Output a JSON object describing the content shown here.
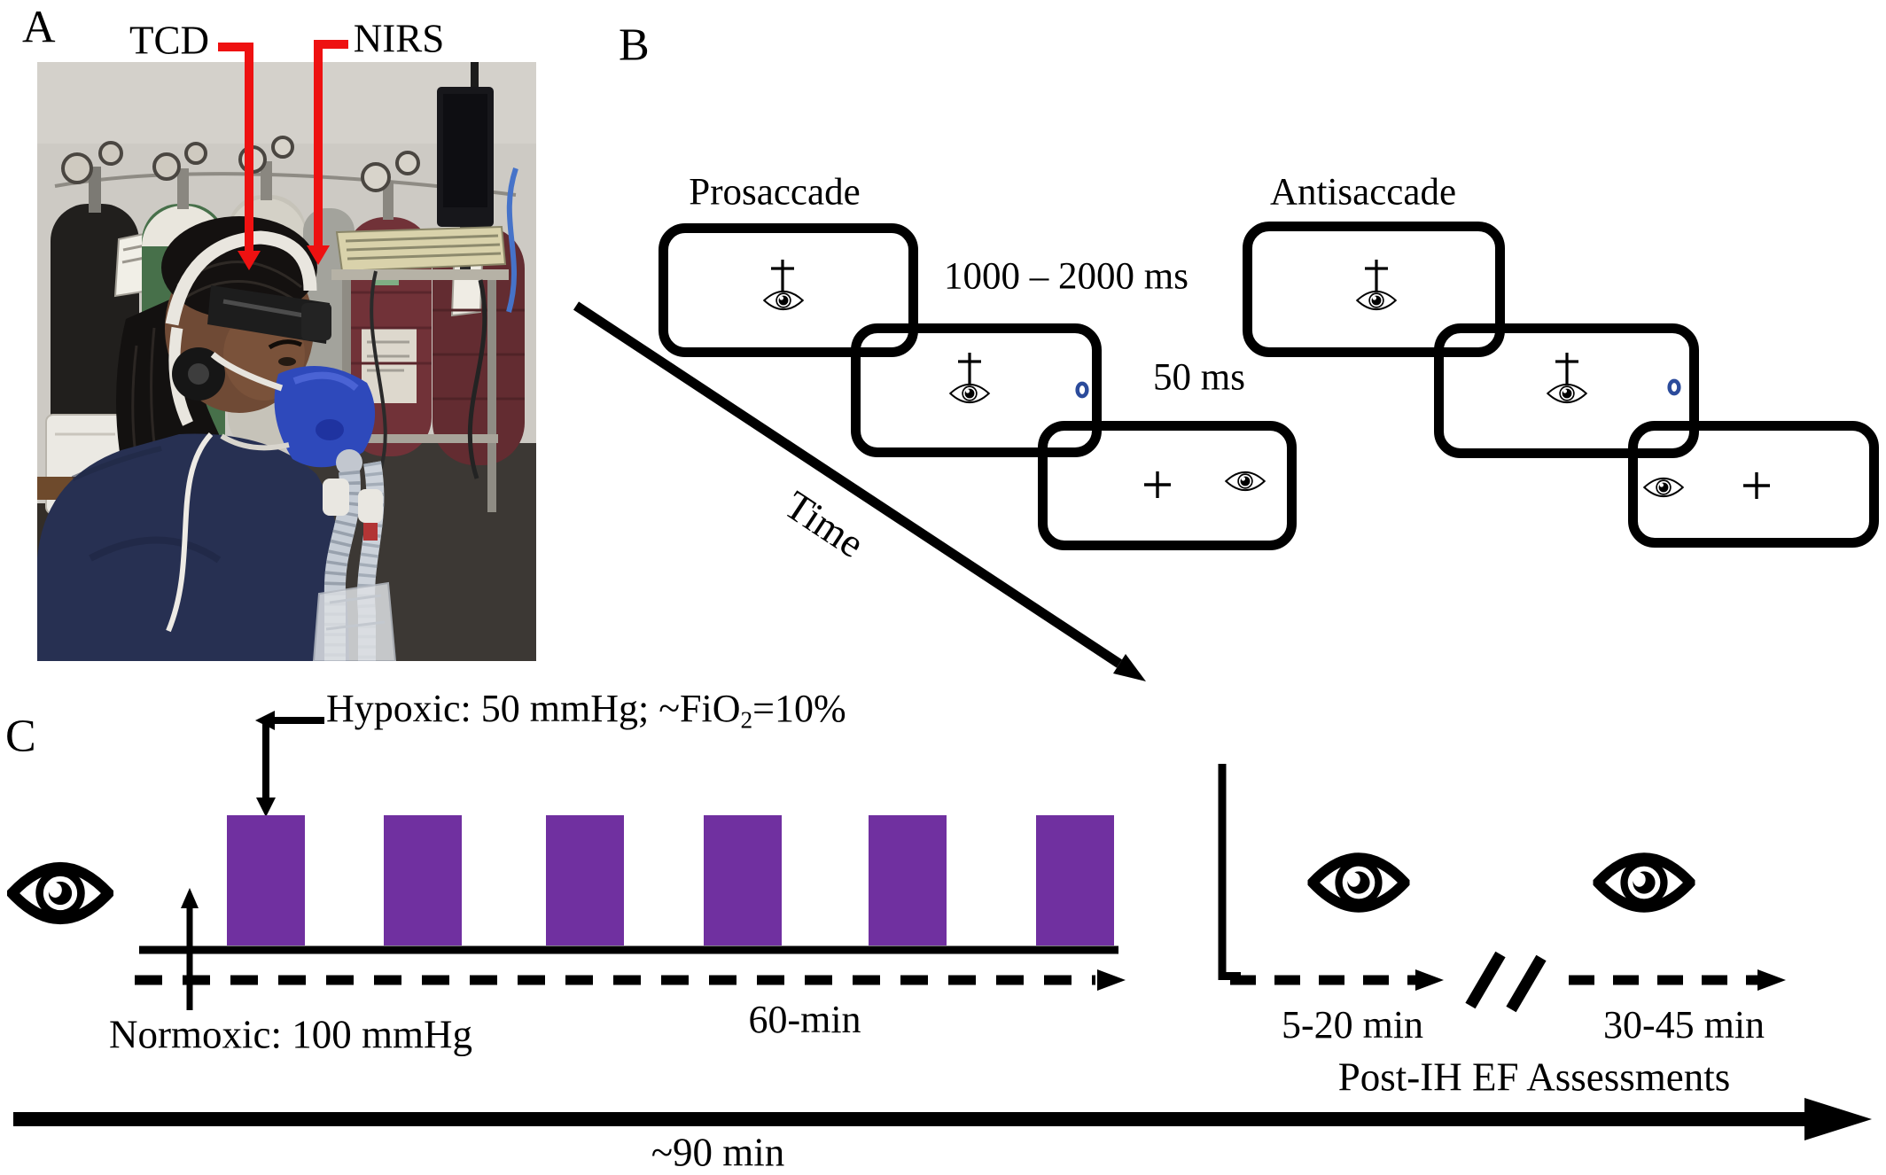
{
  "figure": {
    "panel_a_label": "A",
    "panel_b_label": "B",
    "panel_c_label": "C"
  },
  "panel_a": {
    "annotation_tcd": "TCD",
    "annotation_nirs": "NIRS",
    "photo_alt": "Participant wearing TCD headband and NIRS sensor with breathing mask, seated in front of gas cylinders, monitor and keyboard"
  },
  "panel_b": {
    "prosaccade_title": "Prosaccade",
    "antisaccade_title": "Antisaccade",
    "fixation_duration": "1000 – 2000 ms",
    "target_duration": "50 ms",
    "time_axis_label": "Time"
  },
  "panel_c": {
    "hypoxic_label_prefix": "Hypoxic: 50 mmHg; ~FiO",
    "hypoxic_label_sub": "2",
    "hypoxic_label_suffix": "=10%",
    "normoxic_label": "Normoxic: 100 mmHg",
    "hypoxic_episodes": 6,
    "ih_duration_label": "60-min",
    "assessment_window_1": "5-20 min",
    "assessment_window_2": "30-45 min",
    "assessments_title": "Post-IH EF Assessments",
    "total_duration_label": "~90 min"
  },
  "colors": {
    "hypoxia_bar": "#7030A0",
    "annotation_red": "#ee1111",
    "target_blue": "#2b4b9b"
  }
}
